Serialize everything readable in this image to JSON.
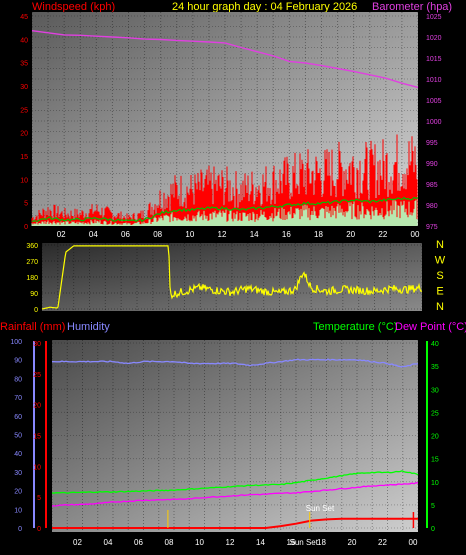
{
  "title": "24 hour graph day : 04 February 2026",
  "x_ticks": [
    "02",
    "04",
    "06",
    "08",
    "10",
    "12",
    "14",
    "16",
    "18",
    "20",
    "22",
    "00"
  ],
  "colors": {
    "wind": "#ff0000",
    "gust_fill": "#ff0000",
    "avg_fill": "#b8e8b0",
    "green_line": "#00c000",
    "barometer": "#e040e0",
    "direction": "#ffff00",
    "rain": "#ff0000",
    "humidity": "#8888ff",
    "temperature": "#00ff00",
    "dewpoint": "#ff00ff",
    "sunset": "#ffcc00"
  },
  "chart_data": [
    {
      "type": "area",
      "name": "wind_barometer",
      "left_label": "Windspeed (kph)",
      "right_label": "Barometer (hpa)",
      "left_ticks": [
        "45",
        "40",
        "35",
        "30",
        "25",
        "20",
        "15",
        "10",
        "5",
        "0"
      ],
      "right_ticks": [
        "1025",
        "1020",
        "1015",
        "1010",
        "1005",
        "1000",
        "995",
        "990",
        "985",
        "980",
        "975"
      ],
      "ylim_left": [
        0,
        45
      ],
      "ylim_right": [
        975,
        1025
      ],
      "hours": [
        0,
        1,
        2,
        3,
        4,
        5,
        6,
        7,
        8,
        9,
        10,
        11,
        12,
        13,
        14,
        15,
        16,
        17,
        18,
        19,
        20,
        21,
        22,
        23,
        24
      ],
      "series": [
        {
          "name": "Windspeed",
          "values": [
            2,
            4,
            3,
            3,
            4,
            3,
            2,
            3,
            7,
            9,
            9,
            10,
            10,
            9,
            10,
            11,
            12,
            13,
            13,
            14,
            15,
            14,
            15,
            16,
            16
          ]
        },
        {
          "name": "Barometer",
          "values": [
            1021.5,
            1021,
            1020.5,
            1020.4,
            1020.2,
            1020,
            1019.8,
            1019.5,
            1019.4,
            1019.2,
            1019,
            1018.8,
            1018.6,
            1017.5,
            1016.5,
            1015.5,
            1014.2,
            1013.8,
            1013.2,
            1012.5,
            1011.8,
            1011,
            1010.2,
            1009,
            1008
          ]
        }
      ]
    },
    {
      "type": "line",
      "name": "wind_direction",
      "left_ticks": [
        "360",
        "270",
        "180",
        "90",
        "0"
      ],
      "right_ticks": [
        "N",
        "W",
        "S",
        "E",
        "N"
      ],
      "ylim": [
        0,
        360
      ],
      "hours": [
        0,
        0.5,
        1,
        1.5,
        2,
        4,
        6,
        7.9,
        8,
        8.1,
        9,
        10,
        11,
        12,
        13,
        14,
        15,
        16,
        16.5,
        17,
        18,
        19,
        20,
        21,
        22,
        23,
        24
      ],
      "values": [
        0,
        10,
        5,
        320,
        355,
        355,
        355,
        355,
        355,
        80,
        100,
        120,
        105,
        95,
        115,
        100,
        90,
        110,
        210,
        120,
        100,
        110,
        105,
        100,
        115,
        110,
        120
      ]
    },
    {
      "type": "line",
      "name": "rain_humidity_temp",
      "left_labels": [
        "Rainfall (mm)",
        "Humidity"
      ],
      "right_labels": [
        "Temperature (°C)",
        "Dew Point (°C)"
      ],
      "humidity_ticks": [
        "100",
        "90",
        "80",
        "70",
        "60",
        "50",
        "40",
        "30",
        "20",
        "10",
        "0"
      ],
      "rain_ticks": [
        "30",
        "25",
        "20",
        "15",
        "10",
        "5",
        "0"
      ],
      "temp_ticks": [
        "40",
        "35",
        "30",
        "25",
        "20",
        "15",
        "10",
        "5",
        "0"
      ],
      "ylim_rain": [
        0,
        30
      ],
      "ylim_temp": [
        0,
        40
      ],
      "annotation": "Sun Set",
      "sunset_label": "Sun Set",
      "hours": [
        0,
        1,
        2,
        3,
        4,
        5,
        6,
        7,
        8,
        9,
        10,
        11,
        12,
        13,
        14,
        15,
        16,
        17,
        18,
        19,
        20,
        21,
        22,
        23,
        24
      ],
      "series": [
        {
          "name": "Humidity",
          "values": [
            89,
            89,
            89,
            89,
            89,
            88,
            89,
            89,
            89,
            88,
            88,
            88,
            88,
            87,
            88,
            89,
            90,
            90,
            90,
            90,
            90,
            89,
            88,
            86,
            88
          ]
        },
        {
          "name": "Temperature",
          "values": [
            7.6,
            7.6,
            7.7,
            7.8,
            7.8,
            7.9,
            8,
            8.1,
            8.2,
            8.4,
            8.6,
            8.8,
            9,
            9.2,
            9.3,
            9.4,
            9.8,
            10.3,
            10.8,
            11.3,
            11.8,
            12,
            12,
            12.3,
            11.6
          ]
        },
        {
          "name": "Dew Point",
          "values": [
            4.8,
            5,
            5.1,
            5.3,
            5.6,
            5.8,
            6,
            6.1,
            6.2,
            6.3,
            6.6,
            6.8,
            7,
            7.2,
            7.3,
            7.5,
            7.6,
            7.9,
            8.2,
            8.5,
            8.8,
            9.1,
            9.3,
            9.5,
            9.7
          ]
        },
        {
          "name": "Rainfall",
          "values": [
            0,
            0,
            0,
            0,
            0,
            0,
            0,
            0,
            0,
            0,
            0,
            0,
            0,
            0,
            0,
            0.3,
            0.7,
            1.2,
            1.4,
            1.5,
            1.5,
            1.5,
            1.5,
            1.5,
            1.5
          ]
        }
      ]
    }
  ]
}
